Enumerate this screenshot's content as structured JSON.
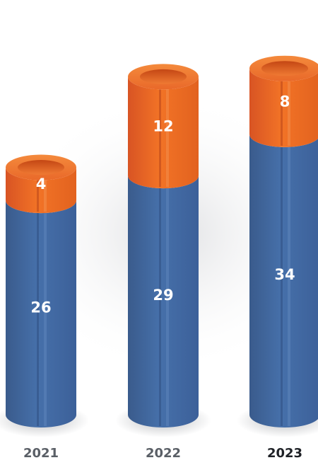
{
  "chart_data": {
    "type": "bar",
    "stacked": true,
    "style": "3d-cylinder",
    "categories": [
      "2021",
      "2022",
      "2023"
    ],
    "series": [
      {
        "values": [
          26,
          29,
          34
        ],
        "color": "#41679f"
      },
      {
        "values": [
          4,
          12,
          8
        ],
        "color": "#e9652a"
      }
    ],
    "highlight_category": "2023",
    "category_label_colors": [
      "#5a5f66",
      "#5a5f66",
      "#1e2126"
    ]
  }
}
